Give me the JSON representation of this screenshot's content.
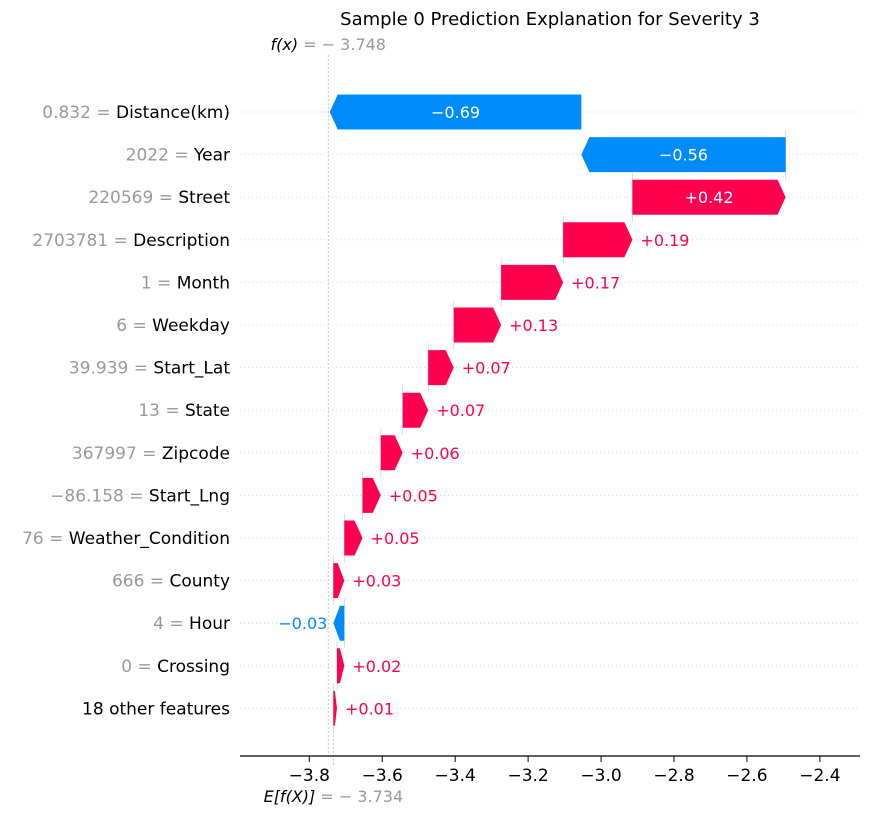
{
  "chart_data": {
    "type": "waterfall",
    "title": "Sample 0 Prediction Explanation for Severity 3",
    "fx": {
      "label": "f(x)",
      "value": -3.748,
      "value_text": "− 3.748"
    },
    "base": {
      "label": "E[f(X)]",
      "value": -3.734,
      "value_text": "− 3.734"
    },
    "xlim": [
      -3.99,
      -2.29
    ],
    "xticks": [
      -3.8,
      -3.6,
      -3.4,
      -3.2,
      -3.0,
      -2.8,
      -2.6,
      -2.4
    ],
    "xtick_labels": [
      "−3.8",
      "−3.6",
      "−3.4",
      "−3.2",
      "−3.0",
      "−2.8",
      "−2.6",
      "−2.4"
    ],
    "features": [
      {
        "value": "0.832",
        "name": "Distance(km)",
        "contribution": -0.69,
        "label": "−0.69"
      },
      {
        "value": "2022",
        "name": "Year",
        "contribution": -0.56,
        "label": "−0.56"
      },
      {
        "value": "220569",
        "name": "Street",
        "contribution": 0.42,
        "label": "+0.42"
      },
      {
        "value": "2703781",
        "name": "Description",
        "contribution": 0.19,
        "label": "+0.19"
      },
      {
        "value": "1",
        "name": "Month",
        "contribution": 0.17,
        "label": "+0.17"
      },
      {
        "value": "6",
        "name": "Weekday",
        "contribution": 0.13,
        "label": "+0.13"
      },
      {
        "value": "39.939",
        "name": "Start_Lat",
        "contribution": 0.07,
        "label": "+0.07"
      },
      {
        "value": "13",
        "name": "State",
        "contribution": 0.07,
        "label": "+0.07"
      },
      {
        "value": "367997",
        "name": "Zipcode",
        "contribution": 0.06,
        "label": "+0.06"
      },
      {
        "value": "−86.158",
        "name": "Start_Lng",
        "contribution": 0.05,
        "label": "+0.05"
      },
      {
        "value": "76",
        "name": "Weather_Condition",
        "contribution": 0.05,
        "label": "+0.05"
      },
      {
        "value": "666",
        "name": "County",
        "contribution": 0.03,
        "label": "+0.03"
      },
      {
        "value": "4",
        "name": "Hour",
        "contribution": -0.03,
        "label": "−0.03"
      },
      {
        "value": "0",
        "name": "Crossing",
        "contribution": 0.02,
        "label": "+0.02"
      },
      {
        "value": "",
        "name": "18 other features",
        "contribution": 0.01,
        "label": "+0.01"
      }
    ],
    "colors": {
      "positive": "#ff0051",
      "negative": "#008bfb",
      "value_text": "#999999"
    }
  }
}
